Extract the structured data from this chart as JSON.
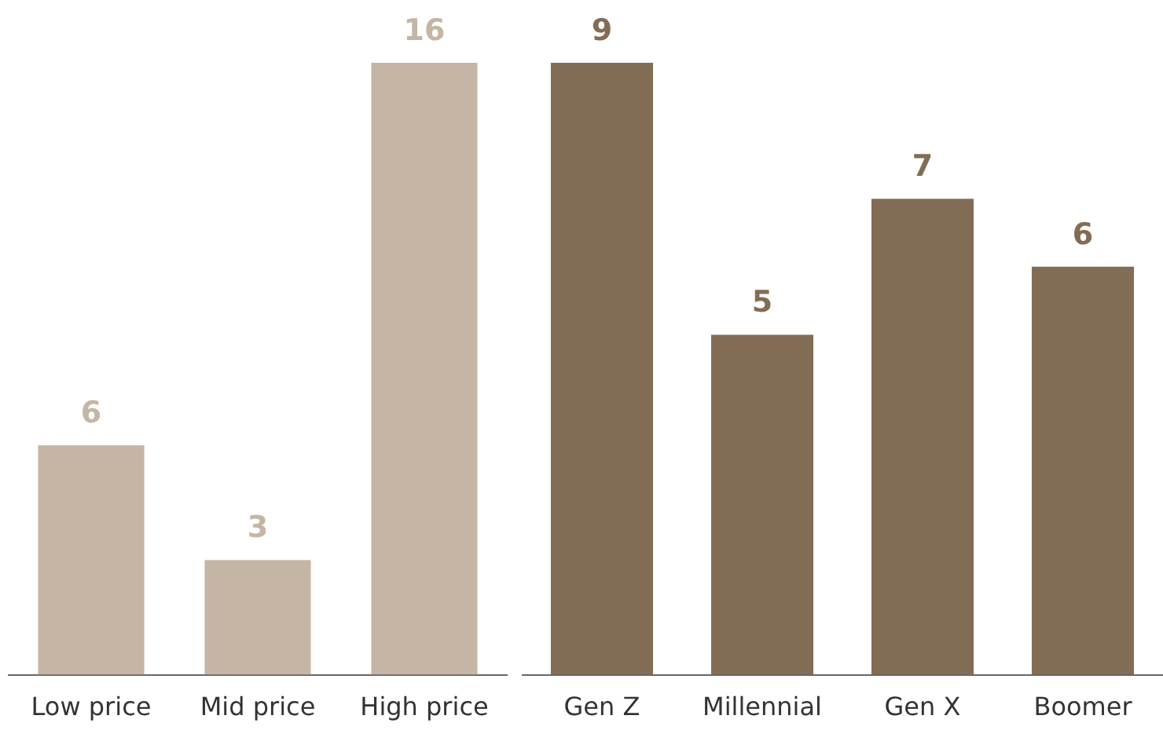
{
  "chart_data": [
    {
      "type": "bar",
      "categories": [
        "Low price",
        "Mid price",
        "High price"
      ],
      "values": [
        6,
        3,
        16
      ],
      "color": "#c5b5a4",
      "data_labels": true,
      "tick_labels": "x",
      "grid": false,
      "legend": false
    },
    {
      "type": "bar",
      "categories": [
        "Gen Z",
        "Millennial",
        "Gen X",
        "Boomer"
      ],
      "values": [
        9,
        5,
        7,
        6
      ],
      "color": "#836c55",
      "data_labels": true,
      "tick_labels": "x",
      "grid": false,
      "legend": false
    }
  ]
}
